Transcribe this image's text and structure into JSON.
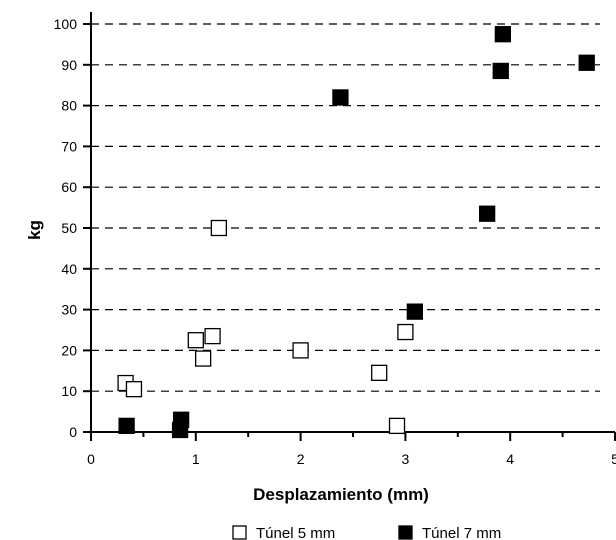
{
  "chart_data": {
    "type": "scatter",
    "xlabel": "Desplazamiento (mm)",
    "ylabel": "kg",
    "xlim": [
      0,
      5
    ],
    "ylim": [
      0,
      100
    ],
    "x_ticks": [
      0,
      1,
      2,
      3,
      4,
      5
    ],
    "y_ticks": [
      0,
      10,
      20,
      30,
      40,
      50,
      60,
      70,
      80,
      90,
      100
    ],
    "grid": "horizontal-dashed",
    "legend_position": "bottom",
    "series": [
      {
        "name": "Túnel 5 mm",
        "marker": "open-square",
        "color": "#000000",
        "points": [
          {
            "x": 0.33,
            "y": 12
          },
          {
            "x": 0.41,
            "y": 10.5
          },
          {
            "x": 1.0,
            "y": 22.5
          },
          {
            "x": 1.07,
            "y": 18
          },
          {
            "x": 1.16,
            "y": 23.5
          },
          {
            "x": 1.22,
            "y": 50
          },
          {
            "x": 2.0,
            "y": 20
          },
          {
            "x": 2.75,
            "y": 14.5
          },
          {
            "x": 2.92,
            "y": 1.5
          },
          {
            "x": 3.0,
            "y": 24.5
          }
        ]
      },
      {
        "name": "Túnel 7 mm",
        "marker": "filled-square",
        "color": "#000000",
        "points": [
          {
            "x": 0.34,
            "y": 1.5
          },
          {
            "x": 0.85,
            "y": 0.5
          },
          {
            "x": 0.86,
            "y": 3
          },
          {
            "x": 2.38,
            "y": 82
          },
          {
            "x": 3.09,
            "y": 29.5
          },
          {
            "x": 3.78,
            "y": 53.5
          },
          {
            "x": 3.91,
            "y": 88.5
          },
          {
            "x": 3.93,
            "y": 97.5
          },
          {
            "x": 4.73,
            "y": 90.5
          }
        ]
      }
    ]
  }
}
